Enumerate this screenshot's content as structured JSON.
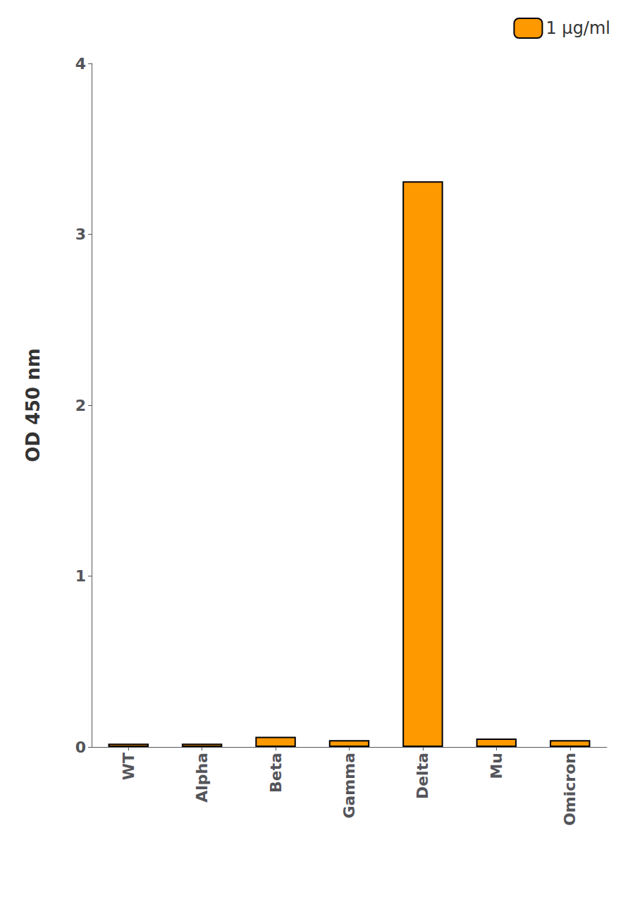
{
  "chart_data": {
    "type": "bar",
    "categories": [
      "WT",
      "Alpha",
      "Beta",
      "Gamma",
      "Delta",
      "Mu",
      "Omicron"
    ],
    "series": [
      {
        "name": "1 μg/ml",
        "color": "#FF9900",
        "values": [
          0.02,
          0.02,
          0.06,
          0.04,
          3.31,
          0.05,
          0.04
        ]
      }
    ],
    "ylabel": "OD 450 nm",
    "ylim": [
      0,
      4
    ],
    "yticks": [
      0,
      1,
      2,
      3,
      4
    ],
    "grid": false,
    "legend": "upper right"
  }
}
